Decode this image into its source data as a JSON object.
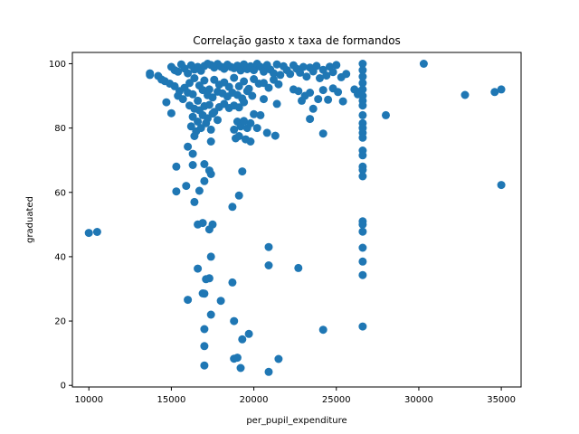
{
  "chart_data": {
    "type": "scatter",
    "title": "Correlação gasto x taxa de formandos",
    "xlabel": "per_pupil_expenditure",
    "ylabel": "graduated",
    "xlim": [
      9000,
      36200
    ],
    "ylim": [
      -0.5,
      103.5
    ],
    "xticks": [
      10000,
      15000,
      20000,
      25000,
      30000,
      35000
    ],
    "yticks": [
      0,
      20,
      40,
      60,
      80,
      100
    ],
    "grid": false,
    "marker_color": "#1f77b4",
    "points": [
      [
        10000,
        47.4
      ],
      [
        10500,
        47.7
      ],
      [
        13700,
        96.5
      ],
      [
        13700,
        97.0
      ],
      [
        14200,
        96.2
      ],
      [
        14400,
        95.1
      ],
      [
        14600,
        94.6
      ],
      [
        14900,
        93.8
      ],
      [
        14700,
        88.0
      ],
      [
        15000,
        84.6
      ],
      [
        15000,
        99.0
      ],
      [
        15200,
        98.0
      ],
      [
        15400,
        97.5
      ],
      [
        15600,
        99.8
      ],
      [
        15800,
        98.5
      ],
      [
        16000,
        97.0
      ],
      [
        16200,
        99.5
      ],
      [
        16400,
        98.2
      ],
      [
        16600,
        99.0
      ],
      [
        16800,
        97.8
      ],
      [
        17000,
        99.3
      ],
      [
        17200,
        100.0
      ],
      [
        17400,
        99.6
      ],
      [
        17600,
        98.8
      ],
      [
        17800,
        99.9
      ],
      [
        18000,
        99.1
      ],
      [
        18200,
        98.4
      ],
      [
        18400,
        99.7
      ],
      [
        18600,
        99.0
      ],
      [
        18800,
        98.6
      ],
      [
        19000,
        99.4
      ],
      [
        19200,
        97.9
      ],
      [
        19400,
        99.8
      ],
      [
        19600,
        98.3
      ],
      [
        19800,
        99.2
      ],
      [
        20000,
        98.0
      ],
      [
        20200,
        100.0
      ],
      [
        20400,
        99.0
      ],
      [
        20600,
        97.5
      ],
      [
        20800,
        99.6
      ],
      [
        21000,
        98.2
      ],
      [
        21200,
        97.0
      ],
      [
        21400,
        99.8
      ],
      [
        21600,
        96.5
      ],
      [
        21800,
        99.2
      ],
      [
        22000,
        98.0
      ],
      [
        22200,
        96.8
      ],
      [
        22400,
        99.5
      ],
      [
        22600,
        98.4
      ],
      [
        22800,
        97.2
      ],
      [
        23000,
        99.0
      ],
      [
        23200,
        96.0
      ],
      [
        23400,
        98.8
      ],
      [
        23600,
        97.6
      ],
      [
        23800,
        99.3
      ],
      [
        24000,
        95.5
      ],
      [
        24200,
        98.1
      ],
      [
        24400,
        96.3
      ],
      [
        24600,
        99.1
      ],
      [
        24800,
        97.4
      ],
      [
        25000,
        99.6
      ],
      [
        25300,
        95.8
      ],
      [
        25600,
        96.8
      ],
      [
        15200,
        93.0
      ],
      [
        15500,
        91.5
      ],
      [
        15800,
        92.5
      ],
      [
        16100,
        94.0
      ],
      [
        16400,
        95.5
      ],
      [
        16700,
        93.2
      ],
      [
        17000,
        94.8
      ],
      [
        17300,
        92.0
      ],
      [
        17600,
        95.0
      ],
      [
        17900,
        93.5
      ],
      [
        18200,
        94.2
      ],
      [
        18500,
        92.8
      ],
      [
        18800,
        95.6
      ],
      [
        19100,
        93.0
      ],
      [
        19400,
        94.5
      ],
      [
        19700,
        92.2
      ],
      [
        20000,
        95.2
      ],
      [
        20300,
        93.8
      ],
      [
        20600,
        94.0
      ],
      [
        20900,
        92.5
      ],
      [
        21200,
        95.0
      ],
      [
        21500,
        93.6
      ],
      [
        15400,
        90.0
      ],
      [
        15700,
        89.0
      ],
      [
        16000,
        91.0
      ],
      [
        16300,
        90.5
      ],
      [
        16600,
        88.5
      ],
      [
        16900,
        91.8
      ],
      [
        17200,
        90.2
      ],
      [
        17500,
        89.5
      ],
      [
        17800,
        91.3
      ],
      [
        18100,
        90.8
      ],
      [
        18400,
        89.8
      ],
      [
        18700,
        91.0
      ],
      [
        19000,
        90.3
      ],
      [
        19300,
        89.2
      ],
      [
        19600,
        91.5
      ],
      [
        19900,
        90.0
      ],
      [
        16100,
        87.0
      ],
      [
        16400,
        86.0
      ],
      [
        16700,
        85.5
      ],
      [
        17000,
        86.8
      ],
      [
        17300,
        87.2
      ],
      [
        17600,
        85.0
      ],
      [
        17900,
        86.5
      ],
      [
        18200,
        87.5
      ],
      [
        18500,
        86.2
      ],
      [
        18800,
        87.0
      ],
      [
        19100,
        86.4
      ],
      [
        19400,
        88.0
      ],
      [
        16300,
        83.5
      ],
      [
        16600,
        82.0
      ],
      [
        16900,
        84.0
      ],
      [
        17200,
        83.0
      ],
      [
        17500,
        84.5
      ],
      [
        17800,
        82.5
      ],
      [
        16200,
        80.5
      ],
      [
        16500,
        79.0
      ],
      [
        16800,
        80.0
      ],
      [
        17100,
        81.5
      ],
      [
        17400,
        79.5
      ],
      [
        16400,
        77.5
      ],
      [
        17400,
        75.8
      ],
      [
        16000,
        74.2
      ],
      [
        16300,
        72.0
      ],
      [
        18800,
        79.5
      ],
      [
        19000,
        82.0
      ],
      [
        19200,
        80.5
      ],
      [
        19400,
        82.2
      ],
      [
        19600,
        80.0
      ],
      [
        19800,
        81.5
      ],
      [
        20000,
        84.3
      ],
      [
        19500,
        76.5
      ],
      [
        18900,
        76.8
      ],
      [
        19100,
        77.5
      ],
      [
        19800,
        75.8
      ],
      [
        20200,
        80.0
      ],
      [
        20800,
        78.5
      ],
      [
        21300,
        77.6
      ],
      [
        20400,
        84.0
      ],
      [
        21400,
        87.5
      ],
      [
        20600,
        89.0
      ],
      [
        22400,
        92.0
      ],
      [
        22700,
        91.5
      ],
      [
        22900,
        88.5
      ],
      [
        23100,
        90.0
      ],
      [
        23400,
        91.0
      ],
      [
        23600,
        86.0
      ],
      [
        23900,
        89.0
      ],
      [
        24200,
        91.8
      ],
      [
        24500,
        88.8
      ],
      [
        24800,
        92.3
      ],
      [
        25100,
        91.2
      ],
      [
        25400,
        88.3
      ],
      [
        23400,
        82.8
      ],
      [
        24200,
        78.3
      ],
      [
        26100,
        92.0
      ],
      [
        26300,
        90.5
      ],
      [
        26500,
        91.5
      ],
      [
        26600,
        100.0
      ],
      [
        26600,
        98.0
      ],
      [
        26600,
        96.0
      ],
      [
        26600,
        94.0
      ],
      [
        26600,
        92.0
      ],
      [
        26600,
        90.0
      ],
      [
        26600,
        88.5
      ],
      [
        26600,
        87.0
      ],
      [
        26600,
        84.0
      ],
      [
        26600,
        81.5
      ],
      [
        26600,
        80.0
      ],
      [
        26600,
        78.5
      ],
      [
        26600,
        77.0
      ],
      [
        26600,
        73.0
      ],
      [
        26600,
        71.5
      ],
      [
        26600,
        68.0
      ],
      [
        26600,
        67.0
      ],
      [
        26600,
        65.0
      ],
      [
        26600,
        51.0
      ],
      [
        26600,
        50.0
      ],
      [
        26600,
        47.8
      ],
      [
        26600,
        42.8
      ],
      [
        26600,
        38.5
      ],
      [
        26600,
        34.3
      ],
      [
        26600,
        18.3
      ],
      [
        28000,
        84.0
      ],
      [
        30300,
        100.0
      ],
      [
        32800,
        90.3
      ],
      [
        34600,
        91.2
      ],
      [
        35000,
        92.0
      ],
      [
        35000,
        62.3
      ],
      [
        15300,
        68.0
      ],
      [
        15300,
        60.3
      ],
      [
        15900,
        62.0
      ],
      [
        16300,
        68.5
      ],
      [
        16700,
        60.5
      ],
      [
        17000,
        68.8
      ],
      [
        17000,
        63.5
      ],
      [
        17300,
        66.8
      ],
      [
        17400,
        65.7
      ],
      [
        16400,
        57.0
      ],
      [
        19300,
        66.5
      ],
      [
        19100,
        59.0
      ],
      [
        18700,
        55.5
      ],
      [
        16600,
        50.0
      ],
      [
        16900,
        50.5
      ],
      [
        17300,
        48.5
      ],
      [
        17500,
        50.0
      ],
      [
        17400,
        40.0
      ],
      [
        16600,
        36.3
      ],
      [
        17100,
        33.0
      ],
      [
        17300,
        33.3
      ],
      [
        16900,
        28.6
      ],
      [
        17000,
        28.5
      ],
      [
        16000,
        26.6
      ],
      [
        18000,
        26.3
      ],
      [
        18700,
        32.0
      ],
      [
        17400,
        22.0
      ],
      [
        18800,
        20.0
      ],
      [
        17000,
        17.5
      ],
      [
        17000,
        12.2
      ],
      [
        19300,
        14.3
      ],
      [
        19700,
        16.0
      ],
      [
        18800,
        8.3
      ],
      [
        19000,
        8.6
      ],
      [
        19200,
        5.4
      ],
      [
        17000,
        6.2
      ],
      [
        20900,
        4.2
      ],
      [
        21500,
        8.2
      ],
      [
        20900,
        43.0
      ],
      [
        20900,
        37.3
      ],
      [
        22700,
        36.5
      ],
      [
        24200,
        17.3
      ]
    ]
  }
}
